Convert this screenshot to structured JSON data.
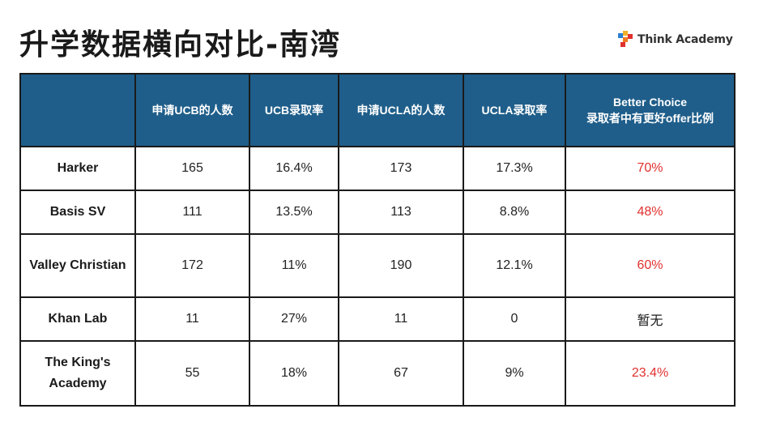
{
  "title": "升学数据横向对比-南湾",
  "logo": {
    "text": "Think Academy"
  },
  "colors": {
    "header_bg": "#1f5e8a",
    "highlight": "#e0312f"
  },
  "table": {
    "headers": [
      "",
      "申请UCB的人数",
      "UCB录取率",
      "申请UCLA的人数",
      "UCLA录取率",
      [
        "Better Choice",
        "录取者中有更好offer比例"
      ]
    ],
    "rows": [
      {
        "school": "Harker",
        "ucb_applicants": "165",
        "ucb_rate": "16.4%",
        "ucla_applicants": "173",
        "ucla_rate": "17.3%",
        "better_choice": "70%"
      },
      {
        "school": "Basis SV",
        "ucb_applicants": "111",
        "ucb_rate": "13.5%",
        "ucla_applicants": "113",
        "ucla_rate": "8.8%",
        "better_choice": "48%"
      },
      {
        "school": "Valley Christian",
        "ucb_applicants": "172",
        "ucb_rate": "11%",
        "ucla_applicants": "190",
        "ucla_rate": "12.1%",
        "better_choice": "60%"
      },
      {
        "school": "Khan Lab",
        "ucb_applicants": "11",
        "ucb_rate": "27%",
        "ucla_applicants": "11",
        "ucla_rate": "0",
        "better_choice": "暂无"
      },
      {
        "school": "The King's Academy",
        "ucb_applicants": "55",
        "ucb_rate": "18%",
        "ucla_applicants": "67",
        "ucla_rate": "9%",
        "better_choice": "23.4%"
      }
    ]
  }
}
